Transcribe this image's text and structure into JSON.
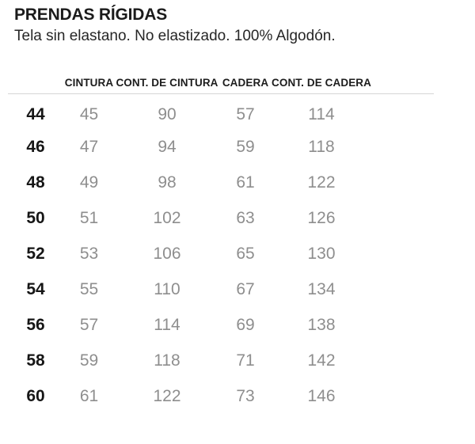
{
  "page": {
    "title": "PRENDAS RÍGIDAS",
    "subtitle": "Tela sin elastano. No elastizado. 100% Algodón."
  },
  "size_table": {
    "column_headers": [
      "",
      "CINTURA",
      "CONT. DE CINTURA",
      "CADERA",
      "CONT. DE CADERA"
    ],
    "rows": [
      {
        "size": "44",
        "values": [
          "45",
          "90",
          "57",
          "114"
        ]
      },
      {
        "size": "46",
        "values": [
          "47",
          "94",
          "59",
          "118"
        ]
      },
      {
        "size": "48",
        "values": [
          "49",
          "98",
          "61",
          "122"
        ]
      },
      {
        "size": "50",
        "values": [
          "51",
          "102",
          "63",
          "126"
        ]
      },
      {
        "size": "52",
        "values": [
          "53",
          "106",
          "65",
          "130"
        ]
      },
      {
        "size": "54",
        "values": [
          "55",
          "110",
          "67",
          "134"
        ]
      },
      {
        "size": "56",
        "values": [
          "57",
          "114",
          "69",
          "138"
        ]
      },
      {
        "size": "58",
        "values": [
          "59",
          "118",
          "71",
          "142"
        ]
      },
      {
        "size": "60",
        "values": [
          "61",
          "122",
          "73",
          "146"
        ]
      }
    ]
  },
  "chart_data": {
    "type": "table",
    "title": "PRENDAS RÍGIDAS",
    "subtitle": "Tela sin elastano. No elastizado. 100% Algodón.",
    "columns": [
      "",
      "CINTURA",
      "CONT. DE CINTURA",
      "CADERA",
      "CONT. DE CADERA"
    ],
    "rows": [
      [
        44,
        45,
        90,
        57,
        114
      ],
      [
        46,
        47,
        94,
        59,
        118
      ],
      [
        48,
        49,
        98,
        61,
        122
      ],
      [
        50,
        51,
        102,
        63,
        126
      ],
      [
        52,
        53,
        106,
        65,
        130
      ],
      [
        54,
        55,
        110,
        67,
        134
      ],
      [
        56,
        57,
        114,
        69,
        138
      ],
      [
        58,
        59,
        118,
        71,
        142
      ],
      [
        60,
        61,
        122,
        73,
        146
      ]
    ],
    "layout": {
      "header_divider": true,
      "row_dividers": false,
      "first_column_style": "bold-black",
      "value_column_style": "gray"
    }
  },
  "colors": {
    "background": "#ffffff",
    "title_text": "#1b1b1b",
    "header_text": "#1c1c1c",
    "size_text": "#161616",
    "value_text": "#8e8e8e",
    "divider": "#d6d6d6"
  }
}
